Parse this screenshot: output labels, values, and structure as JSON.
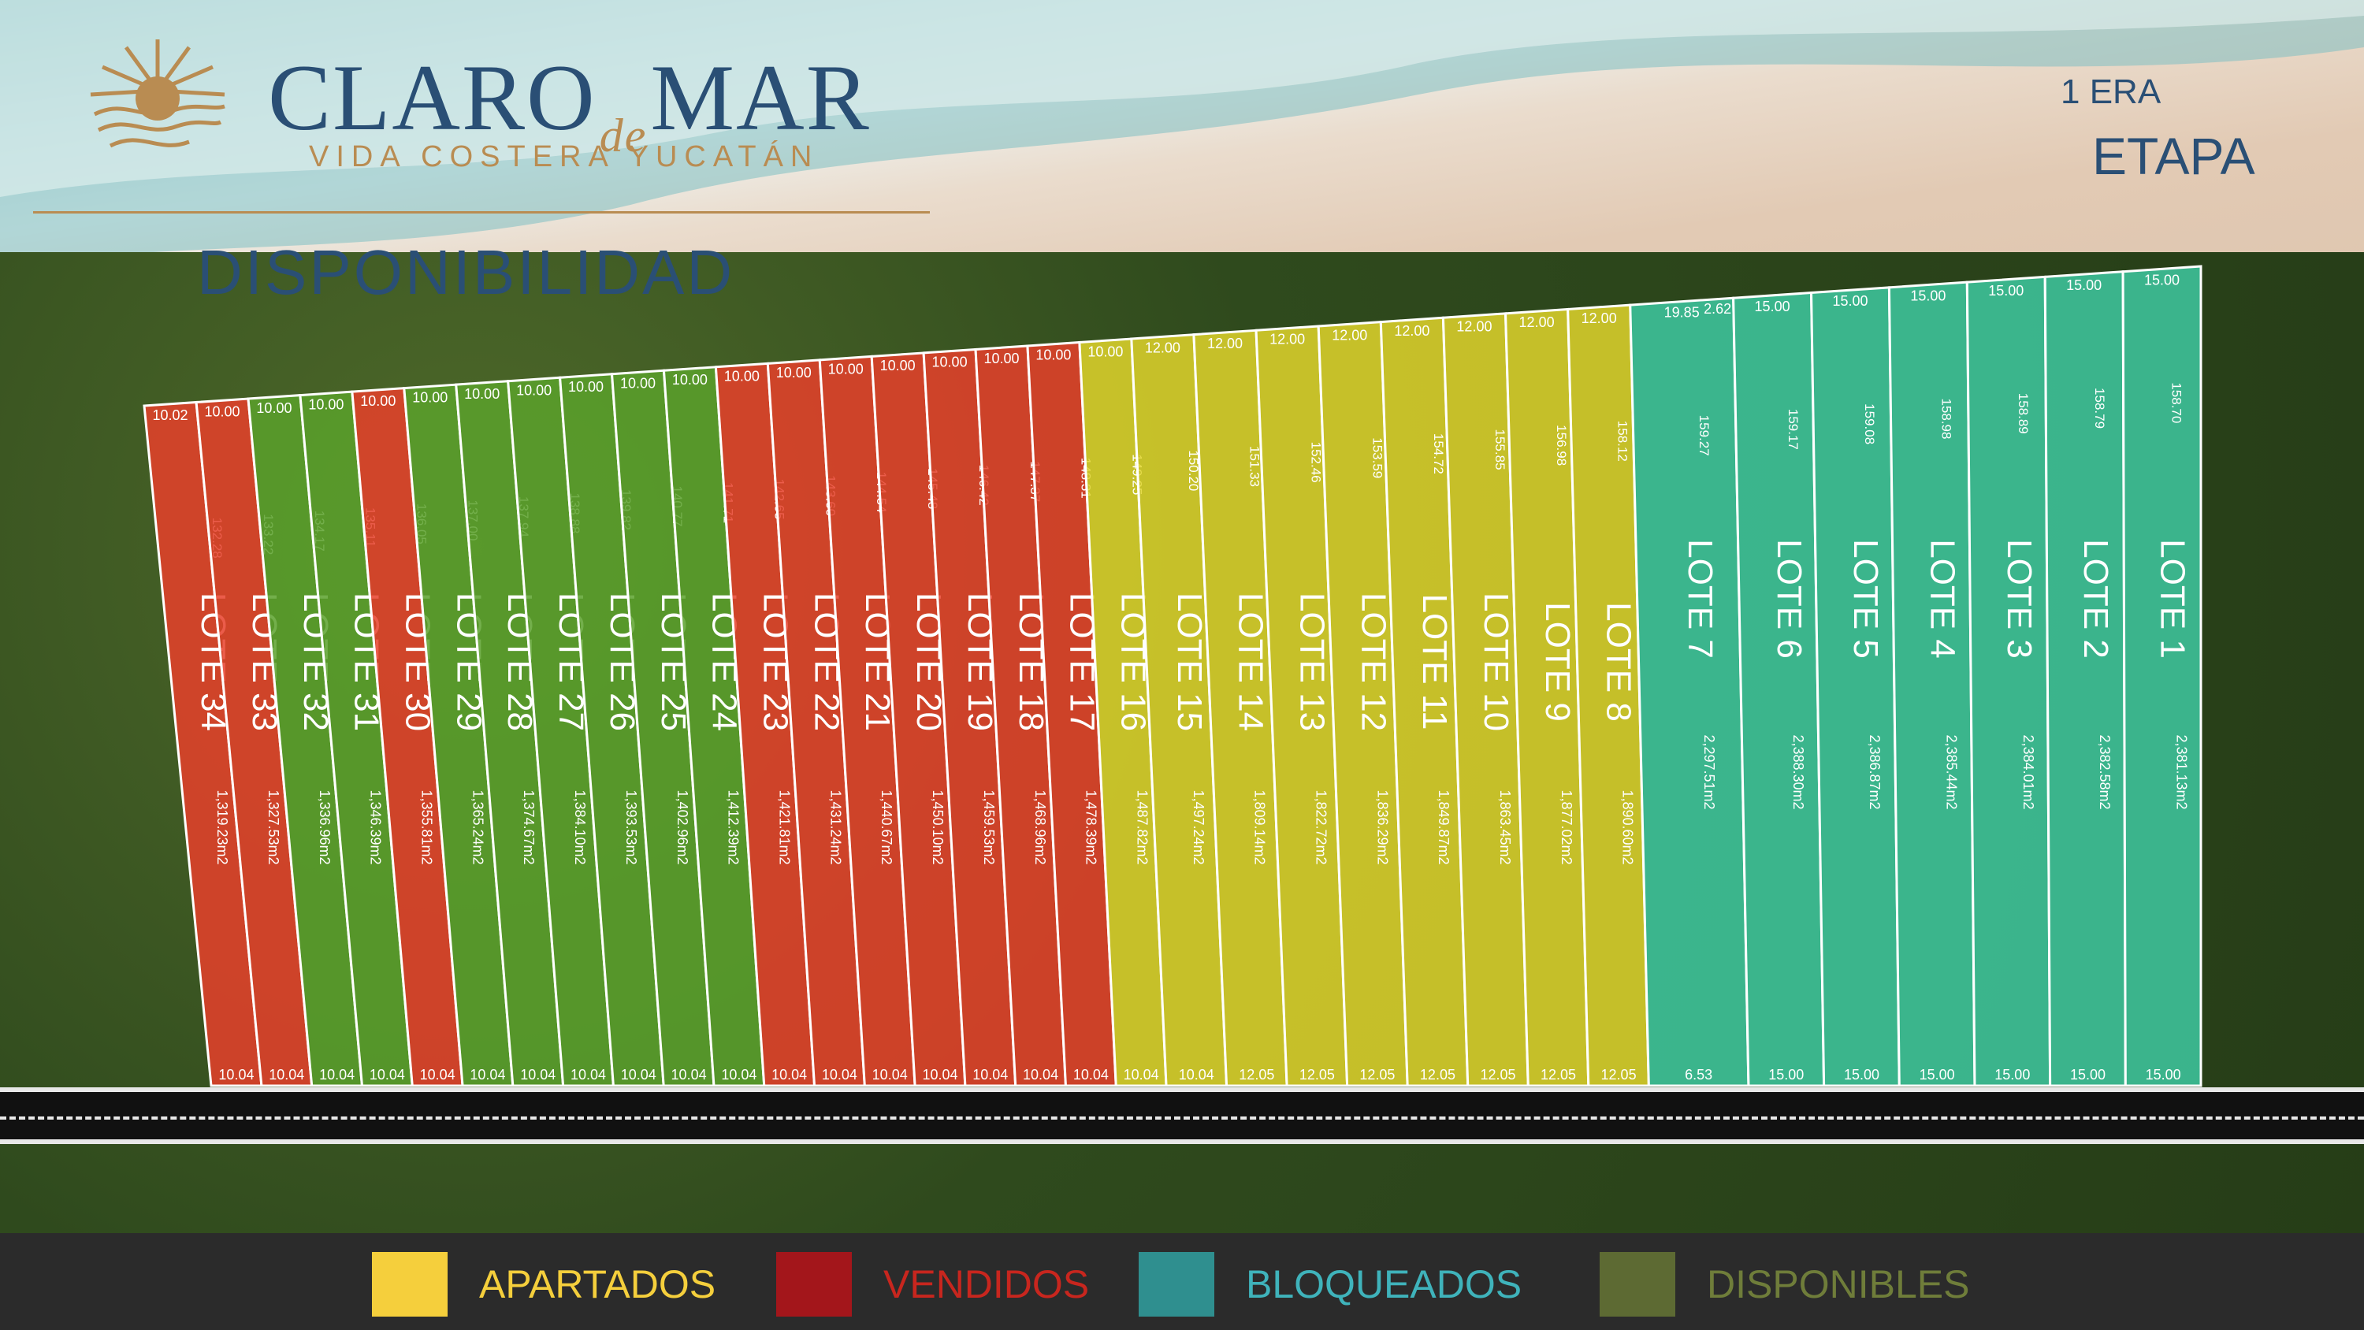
{
  "brand": {
    "name_part1": "CLARO",
    "name_part2": "de",
    "name_part3": "MAR",
    "tagline": "VIDA COSTERA YUCATÁN"
  },
  "section_title": "DISPONIBILIDAD",
  "phase": {
    "number": "1 ERA",
    "name": "ETAPA"
  },
  "colors": {
    "apartados": "#e0d52c",
    "vendidos": "#e8402a",
    "bloqueados": "#3ec9a1",
    "disponibles": "#5aa12c"
  },
  "legend": [
    {
      "label": "APARTADOS",
      "color": "#f5cf3c",
      "text_color": "#f5cf3c"
    },
    {
      "label": "VENDIDOS",
      "color": "#a3161b",
      "text_color": "#c8261e"
    },
    {
      "label": "BLOQUEADOS",
      "color": "#2f8f8f",
      "text_color": "#3fb3bb"
    },
    {
      "label": "DISPONIBLES",
      "color": "#5d6a33",
      "text_color": "#6f7d3a"
    }
  ],
  "lots": [
    {
      "name": "LOTE 34",
      "status": "vendidos",
      "front": "10.02",
      "back": "10.04",
      "depth": "132.28",
      "area": "1,319.23m2"
    },
    {
      "name": "LOTE 33",
      "status": "vendidos",
      "front": "10.00",
      "back": "10.04",
      "depth": "133.22",
      "area": "1,327.53m2"
    },
    {
      "name": "LOTE 32",
      "status": "disponibles",
      "front": "10.00",
      "back": "10.04",
      "depth": "134.17",
      "area": "1,336.96m2"
    },
    {
      "name": "LOTE 31",
      "status": "disponibles",
      "front": "10.00",
      "back": "10.04",
      "depth": "135.11",
      "area": "1,346.39m2"
    },
    {
      "name": "LOTE 30",
      "status": "vendidos",
      "front": "10.00",
      "back": "10.04",
      "depth": "136.05",
      "area": "1,355.81m2"
    },
    {
      "name": "LOTE 29",
      "status": "disponibles",
      "front": "10.00",
      "back": "10.04",
      "depth": "137.00",
      "area": "1,365.24m2"
    },
    {
      "name": "LOTE 28",
      "status": "disponibles",
      "front": "10.00",
      "back": "10.04",
      "depth": "137.94",
      "area": "1,374.67m2"
    },
    {
      "name": "LOTE 27",
      "status": "disponibles",
      "front": "10.00",
      "back": "10.04",
      "depth": "138.88",
      "area": "1,384.10m2"
    },
    {
      "name": "LOTE 26",
      "status": "disponibles",
      "front": "10.00",
      "back": "10.04",
      "depth": "139.82",
      "area": "1,393.53m2"
    },
    {
      "name": "LOTE 25",
      "status": "disponibles",
      "front": "10.00",
      "back": "10.04",
      "depth": "140.77",
      "area": "1,402.96m2"
    },
    {
      "name": "LOTE 24",
      "status": "disponibles",
      "front": "10.00",
      "back": "10.04",
      "depth": "141.71",
      "area": "1,412.39m2"
    },
    {
      "name": "LOTE 23",
      "status": "vendidos",
      "front": "10.00",
      "back": "10.04",
      "depth": "142.65",
      "area": "1,421.81m2"
    },
    {
      "name": "LOTE 22",
      "status": "vendidos",
      "front": "10.00",
      "back": "10.04",
      "depth": "143.60",
      "area": "1,431.24m2"
    },
    {
      "name": "LOTE 21",
      "status": "vendidos",
      "front": "10.00",
      "back": "10.04",
      "depth": "144.54",
      "area": "1,440.67m2"
    },
    {
      "name": "LOTE 20",
      "status": "vendidos",
      "front": "10.00",
      "back": "10.04",
      "depth": "145.48",
      "area": "1,450.10m2"
    },
    {
      "name": "LOTE 19",
      "status": "vendidos",
      "front": "10.00",
      "back": "10.04",
      "depth": "146.42",
      "area": "1,459.53m2"
    },
    {
      "name": "LOTE 18",
      "status": "vendidos",
      "front": "10.00",
      "back": "10.04",
      "depth": "147.37",
      "area": "1,468.96m2"
    },
    {
      "name": "LOTE 17",
      "status": "vendidos",
      "front": "10.00",
      "back": "10.04",
      "depth": "148.31",
      "area": "1,478.39m2"
    },
    {
      "name": "LOTE 16",
      "status": "apartados",
      "front": "10.00",
      "back": "10.04",
      "depth": "149.25",
      "area": "1,487.82m2"
    },
    {
      "name": "LOTE 15",
      "status": "apartados",
      "front": "12.00",
      "back": "10.04",
      "depth": "150.20",
      "area": "1,497.24m2"
    },
    {
      "name": "LOTE 14",
      "status": "apartados",
      "front": "12.00",
      "back": "12.05",
      "depth": "151.33",
      "area": "1,809.14m2"
    },
    {
      "name": "LOTE 13",
      "status": "apartados",
      "front": "12.00",
      "back": "12.05",
      "depth": "152.46",
      "area": "1,822.72m2"
    },
    {
      "name": "LOTE 12",
      "status": "apartados",
      "front": "12.00",
      "back": "12.05",
      "depth": "153.59",
      "area": "1,836.29m2"
    },
    {
      "name": "LOTE 11",
      "status": "apartados",
      "front": "12.00",
      "back": "12.05",
      "depth": "154.72",
      "area": "1,849.87m2"
    },
    {
      "name": "LOTE 10",
      "status": "apartados",
      "front": "12.00",
      "back": "12.05",
      "depth": "155.85",
      "area": "1,863.45m2"
    },
    {
      "name": "LOTE 9",
      "status": "apartados",
      "front": "12.00",
      "back": "12.05",
      "depth": "156.98",
      "area": "1,877.02m2"
    },
    {
      "name": "LOTE 8",
      "status": "apartados",
      "front": "12.00",
      "back": "12.05",
      "depth": "158.12",
      "area": "1,890.60m2"
    },
    {
      "name": "LOTE 7",
      "status": "bloqueados",
      "front": "19.85",
      "back": "6.53",
      "depth": "159.27",
      "area": "2,297.51m2",
      "front_extra": "2.62"
    },
    {
      "name": "LOTE 6",
      "status": "bloqueados",
      "front": "15.00",
      "back": "15.00",
      "depth": "159.17",
      "area": "2,388.30m2"
    },
    {
      "name": "LOTE 5",
      "status": "bloqueados",
      "front": "15.00",
      "back": "15.00",
      "depth": "159.08",
      "area": "2,386.87m2"
    },
    {
      "name": "LOTE 4",
      "status": "bloqueados",
      "front": "15.00",
      "back": "15.00",
      "depth": "158.98",
      "area": "2,385.44m2"
    },
    {
      "name": "LOTE 3",
      "status": "bloqueados",
      "front": "15.00",
      "back": "15.00",
      "depth": "158.89",
      "area": "2,384.01m2"
    },
    {
      "name": "LOTE 2",
      "status": "bloqueados",
      "front": "15.00",
      "back": "15.00",
      "depth": "158.79",
      "area": "2,382.58m2"
    },
    {
      "name": "LOTE 1",
      "status": "bloqueados",
      "front": "15.00",
      "back": "15.00",
      "depth": "158.70",
      "area": "2,381.13m2"
    }
  ]
}
